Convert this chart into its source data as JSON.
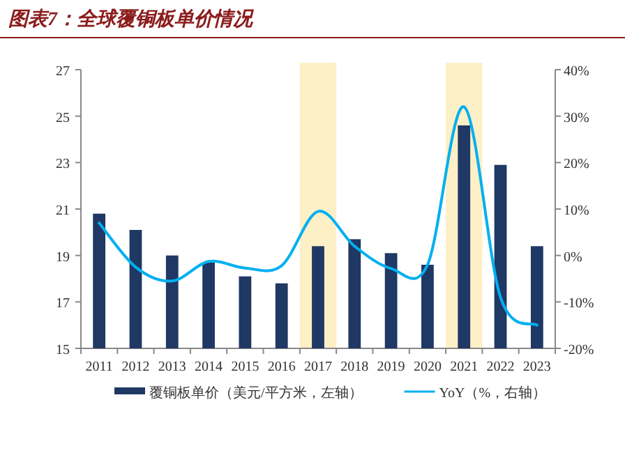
{
  "chart_data": {
    "type": "bar",
    "title": "图表7：全球覆铜板单价情况",
    "categories": [
      "2011",
      "2012",
      "2013",
      "2014",
      "2015",
      "2016",
      "2017",
      "2018",
      "2019",
      "2020",
      "2021",
      "2022",
      "2023"
    ],
    "series": [
      {
        "name": "覆铜板单价（美元/平方米，左轴）",
        "color": "#1f3864",
        "values": [
          20.8,
          20.1,
          19.0,
          18.7,
          18.1,
          17.8,
          19.4,
          19.7,
          19.1,
          18.6,
          24.6,
          22.9,
          19.4
        ]
      },
      {
        "name": "YoY（%，右轴）",
        "type": "line",
        "axis": "y2",
        "color": "#00b0f0",
        "values": [
          7,
          -2.5,
          -5.5,
          -1.3,
          -2.7,
          -2.2,
          9.5,
          2,
          -2.8,
          -2,
          32,
          -9,
          -15
        ]
      }
    ],
    "ylim": [
      15,
      27
    ],
    "yticks": [
      15,
      17,
      19,
      21,
      23,
      25,
      27
    ],
    "y2lim": [
      -20,
      40
    ],
    "y2ticks": [
      {
        "value": -20,
        "label": "-20%"
      },
      {
        "value": -10,
        "label": "-10%"
      },
      {
        "value": 0,
        "label": "0%"
      },
      {
        "value": 10,
        "label": "10%"
      },
      {
        "value": 20,
        "label": "20%"
      },
      {
        "value": 30,
        "label": "30%"
      },
      {
        "value": 40,
        "label": "40%"
      }
    ],
    "bands": [
      {
        "axis": "x",
        "from": "2017",
        "to": "2017",
        "color": "#fdefc6"
      },
      {
        "axis": "x",
        "from": "2021",
        "to": "2021",
        "color": "#fdefc6"
      }
    ],
    "legend": "bottom",
    "grid": false
  }
}
